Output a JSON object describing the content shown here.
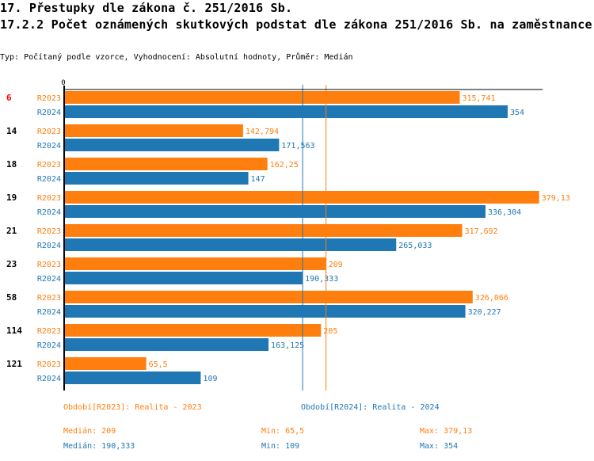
{
  "header": {
    "title": "17. Přestupky dle zákona č. 251/2016 Sb.",
    "subtitle": "17.2.2 Počet oznámených skutkových podstat dle zákona 251/2016 Sb. na zaměstnance",
    "info": "Typ: Počítaný podle vzorce, Vyhodnocení: Absolutní hodnoty, Průměr: Medián"
  },
  "colors": {
    "R2023": "#ff7f0e",
    "R2024": "#1f77b4",
    "highlight_category": "#ff0000",
    "category": "#000000",
    "axis": "#000000"
  },
  "chart_data": {
    "type": "bar",
    "orientation": "horizontal",
    "title": "17.2.2 Počet oznámených skutkových podstat dle zákona 251/2016 Sb. na zaměstnance",
    "xlabel": "",
    "ylabel": "",
    "x_tick_labels": [
      "0"
    ],
    "xlim": [
      0,
      382
    ],
    "grid": false,
    "categories": [
      "6",
      "14",
      "18",
      "19",
      "21",
      "23",
      "58",
      "114",
      "121"
    ],
    "highlighted_category": "6",
    "series": [
      {
        "name": "R2023",
        "values": [
          315.741,
          142.794,
          162.25,
          379.13,
          317.692,
          209,
          326.066,
          205,
          65.5
        ],
        "value_labels": [
          "315,741",
          "142,794",
          "162,25",
          "379,13",
          "317,692",
          "209",
          "326,066",
          "205",
          "65,5"
        ]
      },
      {
        "name": "R2024",
        "values": [
          354,
          171.563,
          147,
          336.304,
          265.033,
          190.333,
          320.227,
          163.125,
          109
        ],
        "value_labels": [
          "354",
          "171,563",
          "147",
          "336,304",
          "265,033",
          "190,333",
          "320,227",
          "163,125",
          "109"
        ]
      }
    ],
    "reference_lines": [
      {
        "series": "R2023",
        "type": "median",
        "value": 209
      },
      {
        "series": "R2024",
        "type": "median",
        "value": 190.333
      }
    ]
  },
  "legend": {
    "R2023": "Období[R2023]: Realita - 2023",
    "R2024": "Období[R2024]: Realita - 2024"
  },
  "stats": {
    "R2023": {
      "median": "Medián: 209",
      "min": "Min: 65,5",
      "max": "Max: 379,13"
    },
    "R2024": {
      "median": "Medián: 190,333",
      "min": "Min: 109",
      "max": "Max: 354"
    }
  }
}
